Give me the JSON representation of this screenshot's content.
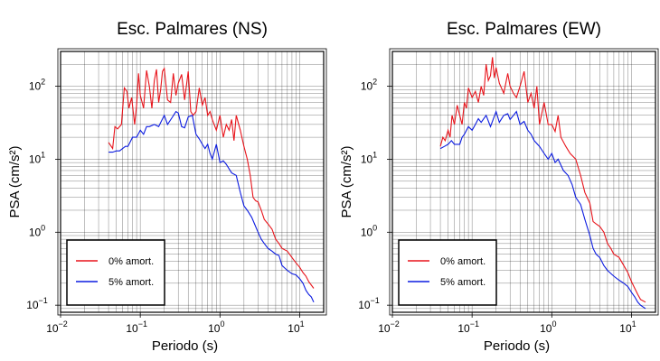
{
  "chart_data": [
    {
      "type": "line",
      "title": "Esc. Palmares (NS)",
      "xlabel": "Periodo (s)",
      "ylabel": "PSA (cm/s²)",
      "xscale": "log",
      "yscale": "log",
      "xlim": [
        0.01,
        20
      ],
      "ylim": [
        0.08,
        300
      ],
      "grid": true,
      "legend_position": "bottom-left",
      "xticks": [
        {
          "value": 0.01,
          "base": "10",
          "exp": "−2"
        },
        {
          "value": 0.1,
          "base": "10",
          "exp": "−1"
        },
        {
          "value": 1,
          "base": "10",
          "exp": "0"
        },
        {
          "value": 10,
          "base": "10",
          "exp": "1"
        }
      ],
      "yticks": [
        {
          "value": 0.1,
          "base": "10",
          "exp": "−1"
        },
        {
          "value": 1,
          "base": "10",
          "exp": "0"
        },
        {
          "value": 10,
          "base": "10",
          "exp": "1"
        },
        {
          "value": 100,
          "base": "10",
          "exp": "2"
        }
      ],
      "series": [
        {
          "name": "0% amort.",
          "color": "#e8141b",
          "x": [
            0.04,
            0.045,
            0.048,
            0.052,
            0.058,
            0.063,
            0.068,
            0.072,
            0.078,
            0.085,
            0.09,
            0.095,
            0.1,
            0.11,
            0.12,
            0.13,
            0.14,
            0.15,
            0.16,
            0.17,
            0.18,
            0.19,
            0.2,
            0.22,
            0.24,
            0.26,
            0.28,
            0.3,
            0.33,
            0.36,
            0.4,
            0.43,
            0.46,
            0.5,
            0.55,
            0.6,
            0.65,
            0.7,
            0.75,
            0.8,
            0.9,
            1.0,
            1.1,
            1.2,
            1.3,
            1.4,
            1.5,
            1.6,
            1.8,
            2.0,
            2.2,
            2.4,
            2.6,
            2.8,
            3.0,
            3.3,
            3.6,
            4.0,
            4.5,
            5.0,
            5.5,
            6.0,
            7.0,
            8.0,
            9.0,
            10,
            11,
            12,
            13,
            15
          ],
          "y": [
            17,
            14,
            28,
            26,
            30,
            95,
            85,
            50,
            70,
            30,
            55,
            150,
            75,
            50,
            165,
            100,
            50,
            120,
            170,
            60,
            90,
            160,
            175,
            65,
            60,
            150,
            75,
            110,
            145,
            65,
            160,
            45,
            40,
            45,
            95,
            55,
            70,
            40,
            45,
            35,
            25,
            40,
            20,
            30,
            25,
            35,
            18,
            40,
            25,
            15,
            10,
            6,
            3,
            2.7,
            2.6,
            2.0,
            1.5,
            1.3,
            1.1,
            0.8,
            0.7,
            0.6,
            0.55,
            0.45,
            0.38,
            0.33,
            0.28,
            0.25,
            0.21,
            0.17
          ]
        },
        {
          "name": "5% amort.",
          "color": "#0b1be0",
          "x": [
            0.04,
            0.045,
            0.05,
            0.055,
            0.06,
            0.065,
            0.07,
            0.08,
            0.09,
            0.1,
            0.11,
            0.12,
            0.13,
            0.15,
            0.17,
            0.2,
            0.22,
            0.25,
            0.28,
            0.3,
            0.33,
            0.36,
            0.4,
            0.45,
            0.5,
            0.55,
            0.6,
            0.65,
            0.7,
            0.75,
            0.8,
            0.9,
            1.0,
            1.1,
            1.2,
            1.4,
            1.6,
            1.8,
            2.0,
            2.2,
            2.5,
            2.8,
            3.0,
            3.3,
            3.6,
            4.0,
            4.5,
            5.0,
            5.5,
            6.0,
            7.0,
            8.0,
            9.0,
            10,
            11,
            12,
            13,
            14,
            15
          ],
          "y": [
            12.5,
            12.5,
            13,
            13,
            14,
            15,
            15,
            20,
            20,
            25,
            22,
            28,
            28,
            30,
            28,
            40,
            30,
            37,
            45,
            43,
            28,
            27,
            38,
            40,
            22,
            19,
            16,
            14,
            16,
            12,
            10,
            16,
            9,
            9.5,
            8.5,
            6.5,
            6,
            3.5,
            2.3,
            2.0,
            1.6,
            1.2,
            1.0,
            0.8,
            0.7,
            0.6,
            0.55,
            0.5,
            0.48,
            0.35,
            0.3,
            0.27,
            0.26,
            0.23,
            0.2,
            0.16,
            0.14,
            0.13,
            0.11
          ]
        }
      ]
    },
    {
      "type": "line",
      "title": "Esc. Palmares (EW)",
      "xlabel": "Periodo (s)",
      "ylabel": "PSA (cm/s²)",
      "xscale": "log",
      "yscale": "log",
      "xlim": [
        0.01,
        20
      ],
      "ylim": [
        0.08,
        300
      ],
      "grid": true,
      "legend_position": "bottom-left",
      "xticks": [
        {
          "value": 0.01,
          "base": "10",
          "exp": "−2"
        },
        {
          "value": 0.1,
          "base": "10",
          "exp": "−1"
        },
        {
          "value": 1,
          "base": "10",
          "exp": "0"
        },
        {
          "value": 10,
          "base": "10",
          "exp": "1"
        }
      ],
      "yticks": [
        {
          "value": 0.1,
          "base": "10",
          "exp": "−1"
        },
        {
          "value": 1,
          "base": "10",
          "exp": "0"
        },
        {
          "value": 10,
          "base": "10",
          "exp": "1"
        },
        {
          "value": 100,
          "base": "10",
          "exp": "2"
        }
      ],
      "series": [
        {
          "name": "0% amort.",
          "color": "#e8141b",
          "x": [
            0.04,
            0.043,
            0.046,
            0.05,
            0.053,
            0.056,
            0.06,
            0.065,
            0.07,
            0.075,
            0.08,
            0.085,
            0.09,
            0.1,
            0.11,
            0.12,
            0.13,
            0.14,
            0.15,
            0.16,
            0.17,
            0.18,
            0.19,
            0.2,
            0.22,
            0.25,
            0.28,
            0.3,
            0.33,
            0.36,
            0.4,
            0.45,
            0.5,
            0.55,
            0.6,
            0.65,
            0.7,
            0.8,
            0.9,
            1.0,
            1.1,
            1.2,
            1.3,
            1.5,
            1.7,
            2.0,
            2.3,
            2.6,
            3.0,
            3.3,
            3.6,
            4.0,
            4.5,
            5.0,
            5.5,
            6.0,
            7.0,
            8.0,
            9.0,
            10,
            11,
            12,
            13,
            15
          ],
          "y": [
            15,
            20,
            18,
            25,
            20,
            40,
            30,
            55,
            40,
            30,
            60,
            50,
            95,
            70,
            85,
            60,
            100,
            75,
            200,
            120,
            140,
            250,
            130,
            180,
            110,
            80,
            150,
            100,
            80,
            70,
            100,
            160,
            60,
            80,
            50,
            100,
            30,
            60,
            30,
            30,
            24,
            40,
            20,
            15,
            12,
            10,
            6,
            3.5,
            2.5,
            1.4,
            1.3,
            1.2,
            1.0,
            0.7,
            0.6,
            0.5,
            0.45,
            0.35,
            0.28,
            0.21,
            0.17,
            0.14,
            0.12,
            0.11
          ]
        },
        {
          "name": "5% amort.",
          "color": "#0b1be0",
          "x": [
            0.04,
            0.045,
            0.05,
            0.055,
            0.06,
            0.065,
            0.07,
            0.075,
            0.08,
            0.09,
            0.1,
            0.11,
            0.12,
            0.13,
            0.15,
            0.17,
            0.2,
            0.22,
            0.25,
            0.28,
            0.3,
            0.33,
            0.36,
            0.4,
            0.45,
            0.5,
            0.55,
            0.6,
            0.7,
            0.8,
            0.9,
            1.0,
            1.1,
            1.2,
            1.4,
            1.6,
            1.8,
            2.0,
            2.3,
            2.6,
            3.0,
            3.3,
            3.6,
            4.0,
            4.5,
            5.0,
            6.0,
            7.0,
            8.0,
            9.0,
            10,
            11,
            12,
            13,
            15
          ],
          "y": [
            14,
            15,
            16,
            18,
            16,
            16,
            16,
            20,
            22,
            28,
            25,
            30,
            36,
            32,
            40,
            28,
            45,
            32,
            40,
            42,
            35,
            40,
            45,
            30,
            33,
            25,
            22,
            18,
            15,
            12,
            10,
            12,
            9,
            10,
            7,
            6,
            4.5,
            3,
            2.4,
            1.5,
            0.9,
            0.6,
            0.5,
            0.45,
            0.35,
            0.3,
            0.25,
            0.22,
            0.2,
            0.18,
            0.15,
            0.13,
            0.11,
            0.1,
            0.09
          ]
        }
      ]
    }
  ]
}
